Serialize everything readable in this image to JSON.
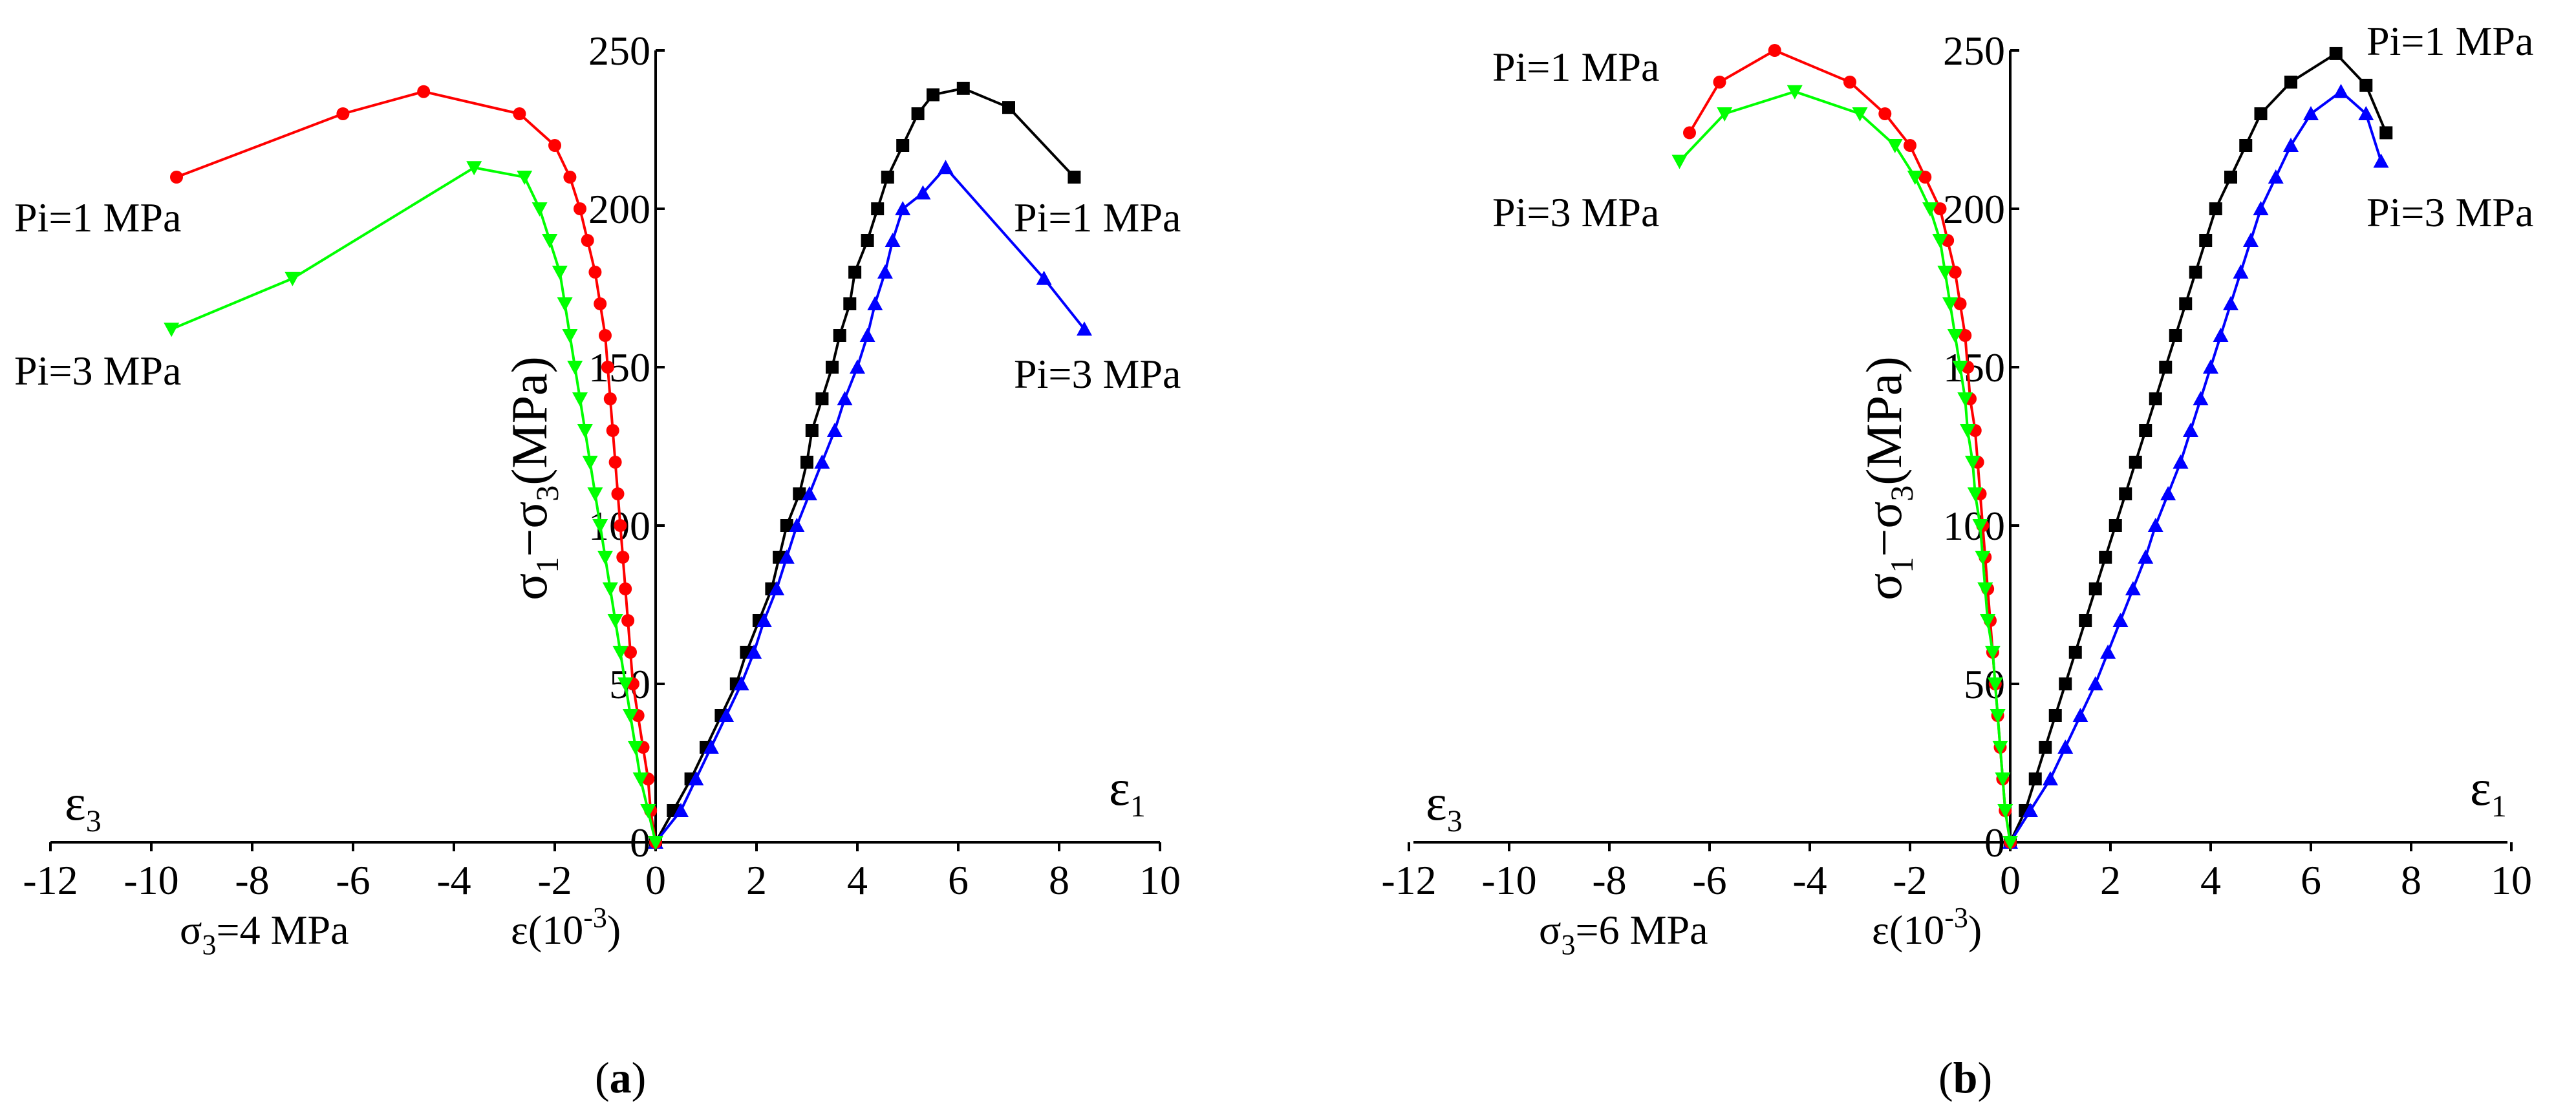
{
  "chart_data": [
    {
      "type": "line",
      "panel_label": "(a)",
      "panel_letter": "a",
      "condition": {
        "prefix": "σ",
        "sub": "3",
        "suffix": "=4 MPa"
      },
      "x_axis": {
        "label": "ε(10",
        "label_sup": "-3",
        "label_close": ")",
        "range": [
          -12,
          10
        ],
        "ticks": [
          "-12",
          "-10",
          "-8",
          "-6",
          "-4",
          "-2",
          "0",
          "2",
          "4",
          "6",
          "8",
          "10"
        ]
      },
      "y_axis": {
        "range": [
          0,
          250
        ],
        "ticks": [
          "0",
          "50",
          "100",
          "150",
          "200",
          "250"
        ],
        "label_parts": [
          "σ",
          "1",
          "−σ",
          "3",
          "(MPa)"
        ]
      },
      "eps_left": {
        "sym": "ε",
        "sub": "3"
      },
      "eps_right": {
        "sym": "ε",
        "sub": "1"
      },
      "series": [
        {
          "name": "Pi=1 MPa",
          "strain": "ε1",
          "color": "#000000",
          "marker": "square",
          "points": [
            [
              0,
              0
            ],
            [
              0.35,
              10
            ],
            [
              0.7,
              20
            ],
            [
              1.0,
              30
            ],
            [
              1.3,
              40
            ],
            [
              1.6,
              50
            ],
            [
              1.8,
              60
            ],
            [
              2.05,
              70
            ],
            [
              2.3,
              80
            ],
            [
              2.45,
              90
            ],
            [
              2.6,
              100
            ],
            [
              2.85,
              110
            ],
            [
              3.0,
              120
            ],
            [
              3.1,
              130
            ],
            [
              3.3,
              140
            ],
            [
              3.5,
              150
            ],
            [
              3.65,
              160
            ],
            [
              3.85,
              170
            ],
            [
              3.95,
              180
            ],
            [
              4.2,
              190
            ],
            [
              4.4,
              200
            ],
            [
              4.6,
              210
            ],
            [
              4.9,
              220
            ],
            [
              5.2,
              230
            ],
            [
              5.5,
              236
            ],
            [
              6.1,
              238
            ],
            [
              7.0,
              232
            ],
            [
              8.3,
              210
            ]
          ]
        },
        {
          "name": "Pi=3 MPa",
          "strain": "ε1",
          "color": "#0000ff",
          "marker": "triangle-up",
          "points": [
            [
              0,
              0
            ],
            [
              0.5,
              10
            ],
            [
              0.8,
              20
            ],
            [
              1.1,
              30
            ],
            [
              1.4,
              40
            ],
            [
              1.7,
              50
            ],
            [
              1.95,
              60
            ],
            [
              2.15,
              70
            ],
            [
              2.4,
              80
            ],
            [
              2.6,
              90
            ],
            [
              2.8,
              100
            ],
            [
              3.05,
              110
            ],
            [
              3.3,
              120
            ],
            [
              3.55,
              130
            ],
            [
              3.75,
              140
            ],
            [
              4.0,
              150
            ],
            [
              4.2,
              160
            ],
            [
              4.35,
              170
            ],
            [
              4.55,
              180
            ],
            [
              4.7,
              190
            ],
            [
              4.9,
              200
            ],
            [
              5.3,
              205
            ],
            [
              5.75,
              213
            ],
            [
              7.7,
              178
            ],
            [
              8.5,
              162
            ]
          ]
        },
        {
          "name": "Pi=1 MPa",
          "strain": "ε3",
          "color": "#ff0000",
          "marker": "circle",
          "points": [
            [
              0,
              0
            ],
            [
              -0.1,
              10
            ],
            [
              -0.15,
              20
            ],
            [
              -0.25,
              30
            ],
            [
              -0.35,
              40
            ],
            [
              -0.45,
              50
            ],
            [
              -0.5,
              60
            ],
            [
              -0.55,
              70
            ],
            [
              -0.6,
              80
            ],
            [
              -0.65,
              90
            ],
            [
              -0.7,
              100
            ],
            [
              -0.75,
              110
            ],
            [
              -0.8,
              120
            ],
            [
              -0.85,
              130
            ],
            [
              -0.9,
              140
            ],
            [
              -0.95,
              150
            ],
            [
              -1.0,
              160
            ],
            [
              -1.1,
              170
            ],
            [
              -1.2,
              180
            ],
            [
              -1.35,
              190
            ],
            [
              -1.5,
              200
            ],
            [
              -1.7,
              210
            ],
            [
              -2.0,
              220
            ],
            [
              -2.7,
              230
            ],
            [
              -4.6,
              237
            ],
            [
              -6.2,
              230
            ],
            [
              -9.5,
              210
            ]
          ]
        },
        {
          "name": "Pi=3 MPa",
          "strain": "ε3",
          "color": "#00ff00",
          "marker": "triangle-down",
          "points": [
            [
              0,
              0
            ],
            [
              -0.15,
              10
            ],
            [
              -0.3,
              20
            ],
            [
              -0.4,
              30
            ],
            [
              -0.5,
              40
            ],
            [
              -0.6,
              50
            ],
            [
              -0.7,
              60
            ],
            [
              -0.8,
              70
            ],
            [
              -0.9,
              80
            ],
            [
              -1.0,
              90
            ],
            [
              -1.1,
              100
            ],
            [
              -1.2,
              110
            ],
            [
              -1.3,
              120
            ],
            [
              -1.4,
              130
            ],
            [
              -1.5,
              140
            ],
            [
              -1.6,
              150
            ],
            [
              -1.7,
              160
            ],
            [
              -1.8,
              170
            ],
            [
              -1.9,
              180
            ],
            [
              -2.1,
              190
            ],
            [
              -2.3,
              200
            ],
            [
              -2.6,
              210
            ],
            [
              -3.6,
              213
            ],
            [
              -7.2,
              178
            ],
            [
              -9.6,
              162
            ]
          ]
        }
      ],
      "annotations": [
        "Pi=1 MPa",
        "Pi=3 MPa",
        "Pi=1 MPa",
        "Pi=3 MPa"
      ]
    },
    {
      "type": "line",
      "panel_label": "(b)",
      "panel_letter": "b",
      "condition": {
        "prefix": "σ",
        "sub": "3",
        "suffix": "=6 MPa"
      },
      "x_axis": {
        "label": "ε(10",
        "label_sup": "-3",
        "label_close": ")",
        "range": [
          -12,
          10
        ],
        "ticks": [
          "-12",
          "-10",
          "-8",
          "-6",
          "-4",
          "-2",
          "0",
          "2",
          "4",
          "6",
          "8",
          "10"
        ]
      },
      "y_axis": {
        "range": [
          0,
          250
        ],
        "ticks": [
          "0",
          "50",
          "100",
          "150",
          "200",
          "250"
        ],
        "label_parts": [
          "σ",
          "1",
          "−σ",
          "3",
          "(MPa)"
        ]
      },
      "eps_left": {
        "sym": "ε",
        "sub": "3"
      },
      "eps_right": {
        "sym": "ε",
        "sub": "1"
      },
      "series": [
        {
          "name": "Pi=1 MPa",
          "strain": "ε1",
          "color": "#000000",
          "marker": "square",
          "points": [
            [
              0,
              0
            ],
            [
              0.3,
              10
            ],
            [
              0.5,
              20
            ],
            [
              0.7,
              30
            ],
            [
              0.9,
              40
            ],
            [
              1.1,
              50
            ],
            [
              1.3,
              60
            ],
            [
              1.5,
              70
            ],
            [
              1.7,
              80
            ],
            [
              1.9,
              90
            ],
            [
              2.1,
              100
            ],
            [
              2.3,
              110
            ],
            [
              2.5,
              120
            ],
            [
              2.7,
              130
            ],
            [
              2.9,
              140
            ],
            [
              3.1,
              150
            ],
            [
              3.3,
              160
            ],
            [
              3.5,
              170
            ],
            [
              3.7,
              180
            ],
            [
              3.9,
              190
            ],
            [
              4.1,
              200
            ],
            [
              4.4,
              210
            ],
            [
              4.7,
              220
            ],
            [
              5.0,
              230
            ],
            [
              5.6,
              240
            ],
            [
              6.5,
              249
            ],
            [
              7.1,
              239
            ],
            [
              7.5,
              224
            ]
          ]
        },
        {
          "name": "Pi=3 MPa",
          "strain": "ε1",
          "color": "#0000ff",
          "marker": "triangle-up",
          "points": [
            [
              0,
              0
            ],
            [
              0.4,
              10
            ],
            [
              0.8,
              20
            ],
            [
              1.1,
              30
            ],
            [
              1.4,
              40
            ],
            [
              1.7,
              50
            ],
            [
              1.95,
              60
            ],
            [
              2.2,
              70
            ],
            [
              2.45,
              80
            ],
            [
              2.7,
              90
            ],
            [
              2.9,
              100
            ],
            [
              3.15,
              110
            ],
            [
              3.4,
              120
            ],
            [
              3.6,
              130
            ],
            [
              3.8,
              140
            ],
            [
              4.0,
              150
            ],
            [
              4.2,
              160
            ],
            [
              4.4,
              170
            ],
            [
              4.6,
              180
            ],
            [
              4.8,
              190
            ],
            [
              5.0,
              200
            ],
            [
              5.3,
              210
            ],
            [
              5.6,
              220
            ],
            [
              6.0,
              230
            ],
            [
              6.6,
              237
            ],
            [
              7.1,
              230
            ],
            [
              7.4,
              215
            ]
          ]
        },
        {
          "name": "Pi=1 MPa",
          "strain": "ε3",
          "color": "#ff0000",
          "marker": "circle",
          "points": [
            [
              0,
              0
            ],
            [
              -0.1,
              10
            ],
            [
              -0.15,
              20
            ],
            [
              -0.2,
              30
            ],
            [
              -0.25,
              40
            ],
            [
              -0.3,
              50
            ],
            [
              -0.35,
              60
            ],
            [
              -0.4,
              70
            ],
            [
              -0.45,
              80
            ],
            [
              -0.5,
              90
            ],
            [
              -0.55,
              100
            ],
            [
              -0.6,
              110
            ],
            [
              -0.65,
              120
            ],
            [
              -0.7,
              130
            ],
            [
              -0.8,
              140
            ],
            [
              -0.85,
              150
            ],
            [
              -0.9,
              160
            ],
            [
              -1.0,
              170
            ],
            [
              -1.1,
              180
            ],
            [
              -1.25,
              190
            ],
            [
              -1.4,
              200
            ],
            [
              -1.7,
              210
            ],
            [
              -2.0,
              220
            ],
            [
              -2.5,
              230
            ],
            [
              -3.2,
              240
            ],
            [
              -4.7,
              250
            ],
            [
              -5.8,
              240
            ],
            [
              -6.4,
              224
            ]
          ]
        },
        {
          "name": "Pi=3 MPa",
          "strain": "ε3",
          "color": "#00ff00",
          "marker": "triangle-down",
          "points": [
            [
              0,
              0
            ],
            [
              -0.1,
              10
            ],
            [
              -0.15,
              20
            ],
            [
              -0.2,
              30
            ],
            [
              -0.25,
              40
            ],
            [
              -0.3,
              50
            ],
            [
              -0.35,
              60
            ],
            [
              -0.45,
              70
            ],
            [
              -0.5,
              80
            ],
            [
              -0.55,
              90
            ],
            [
              -0.6,
              100
            ],
            [
              -0.7,
              110
            ],
            [
              -0.75,
              120
            ],
            [
              -0.85,
              130
            ],
            [
              -0.9,
              140
            ],
            [
              -1.0,
              150
            ],
            [
              -1.1,
              160
            ],
            [
              -1.2,
              170
            ],
            [
              -1.3,
              180
            ],
            [
              -1.4,
              190
            ],
            [
              -1.6,
              200
            ],
            [
              -1.9,
              210
            ],
            [
              -2.3,
              220
            ],
            [
              -3.0,
              230
            ],
            [
              -4.3,
              237
            ],
            [
              -5.7,
              230
            ],
            [
              -6.6,
              215
            ]
          ]
        }
      ],
      "annotations": [
        "Pi=1 MPa",
        "Pi=3 MPa",
        "Pi=1 MPa",
        "Pi=3 MPa"
      ]
    }
  ]
}
